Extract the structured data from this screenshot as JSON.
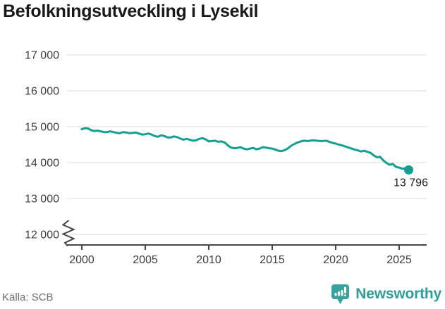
{
  "header": {
    "title": "Befolkningsutveckling i Lysekil"
  },
  "chart_data": {
    "type": "line",
    "title": "Befolkningsutveckling i Lysekil",
    "xlabel": "",
    "ylabel": "",
    "x_start": 2000,
    "x_step": 0.25,
    "values": [
      14930,
      14960,
      14950,
      14900,
      14880,
      14890,
      14870,
      14850,
      14850,
      14870,
      14850,
      14830,
      14820,
      14850,
      14840,
      14820,
      14830,
      14840,
      14810,
      14780,
      14790,
      14810,
      14780,
      14740,
      14720,
      14760,
      14740,
      14700,
      14700,
      14730,
      14710,
      14670,
      14640,
      14660,
      14640,
      14610,
      14620,
      14660,
      14680,
      14650,
      14590,
      14600,
      14610,
      14580,
      14590,
      14560,
      14480,
      14420,
      14400,
      14410,
      14430,
      14390,
      14370,
      14390,
      14410,
      14370,
      14390,
      14430,
      14420,
      14400,
      14390,
      14360,
      14330,
      14320,
      14350,
      14400,
      14470,
      14520,
      14560,
      14590,
      14610,
      14600,
      14610,
      14620,
      14610,
      14600,
      14600,
      14610,
      14580,
      14550,
      14530,
      14500,
      14480,
      14450,
      14420,
      14390,
      14360,
      14340,
      14310,
      14330,
      14300,
      14270,
      14200,
      14150,
      14160,
      14060,
      13990,
      13940,
      13960,
      13880,
      13860,
      13830,
      13840,
      13796
    ],
    "end_point": {
      "x": 2025.75,
      "value": 13796,
      "label": "13 796"
    },
    "x_ticks": [
      2000,
      2005,
      2010,
      2015,
      2020,
      2025
    ],
    "y_ticks": [
      12000,
      13000,
      14000,
      15000,
      16000,
      17000
    ],
    "y_tick_labels": [
      "12 000",
      "13 000",
      "14 000",
      "15 000",
      "16 000",
      "17 000"
    ],
    "ylim": [
      12000,
      17000
    ],
    "axis_break": true,
    "grid": "horizontal",
    "legend": "none",
    "line_color": "#12a092"
  },
  "footer": {
    "source": "Källa: SCB",
    "brand": "Newsworthy"
  },
  "colors": {
    "line": "#12a092",
    "brand_teal": "#2d9e9b",
    "logo_teal": "#37a3a0",
    "gridline": "#e2e2e2",
    "axis": "#454545",
    "title_text": "#191919",
    "source_text": "#6e6e78"
  }
}
